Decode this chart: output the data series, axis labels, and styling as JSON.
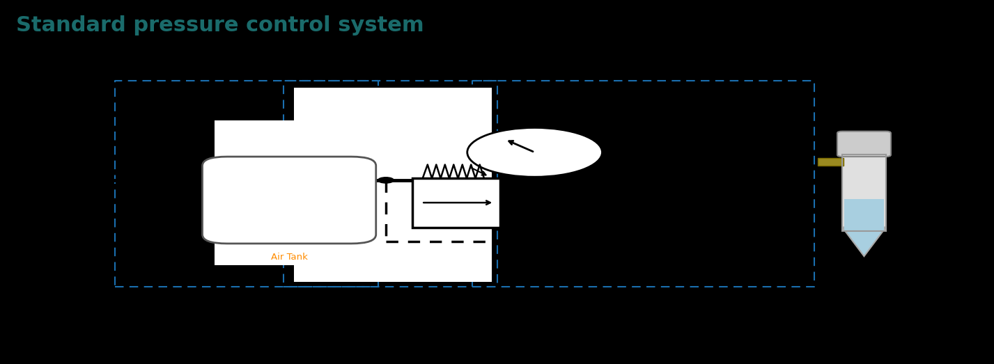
{
  "title": "Standard pressure control system",
  "title_color": "#1a6b6b",
  "title_fontsize": 22,
  "background_color": "#000000",
  "fig_width": 14.27,
  "fig_height": 5.23,
  "air_tank_label": "Air Tank",
  "air_tank_color": "#FF8C00",
  "white_bg_color": "#ffffff",
  "blue_dashed_color": "#1a6faf"
}
